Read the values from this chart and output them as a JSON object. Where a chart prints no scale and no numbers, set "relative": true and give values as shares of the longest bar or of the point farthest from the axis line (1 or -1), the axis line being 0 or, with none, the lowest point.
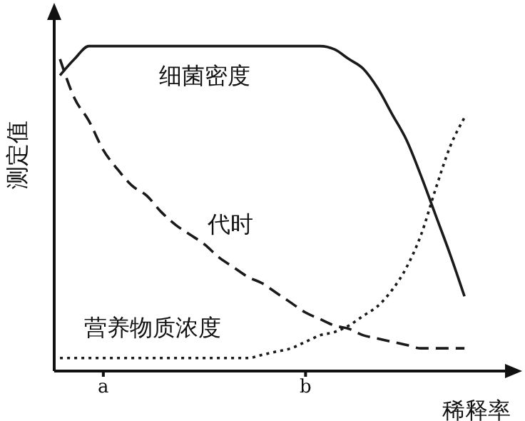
{
  "chart_data": {
    "type": "line",
    "relative": true,
    "xlabel": "稀释率",
    "ylabel": "测定值",
    "categories": [
      null,
      null,
      null,
      "a",
      null,
      null,
      null,
      null,
      null,
      null,
      null,
      null,
      null,
      null,
      null,
      null,
      null,
      "b",
      null,
      null,
      null,
      null,
      null,
      null,
      null,
      null,
      null,
      null,
      null
    ],
    "series": [
      {
        "name": "细菌密度",
        "color": "#1a1a1a",
        "line_style": "solid",
        "values": [
          0.91,
          0.96,
          1,
          1,
          1,
          1,
          1,
          1,
          1,
          1,
          1,
          1,
          1,
          1,
          1,
          1,
          1,
          1,
          1,
          0.99,
          0.96,
          0.93,
          0.87,
          0.79,
          0.71,
          0.6,
          0.48,
          0.36,
          0.23
        ]
      },
      {
        "name": "代时",
        "color": "#1a1a1a",
        "line_style": "dashed",
        "values": [
          0.96,
          0.84,
          0.77,
          0.68,
          0.62,
          0.57,
          0.54,
          0.49,
          0.45,
          0.42,
          0.39,
          0.35,
          0.32,
          0.29,
          0.27,
          0.24,
          0.21,
          0.18,
          0.16,
          0.14,
          0.13,
          0.11,
          0.1,
          0.09,
          0.08,
          0.07,
          0.07,
          0.07,
          0.07
        ]
      },
      {
        "name": "营养物质浓度",
        "color": "#1a1a1a",
        "line_style": "dotted",
        "values": [
          0.04,
          0.04,
          0.04,
          0.04,
          0.04,
          0.04,
          0.04,
          0.04,
          0.04,
          0.04,
          0.04,
          0.04,
          0.04,
          0.04,
          0.05,
          0.06,
          0.07,
          0.09,
          0.11,
          0.12,
          0.14,
          0.17,
          0.2,
          0.25,
          0.32,
          0.42,
          0.56,
          0.69,
          0.78
        ]
      }
    ]
  }
}
